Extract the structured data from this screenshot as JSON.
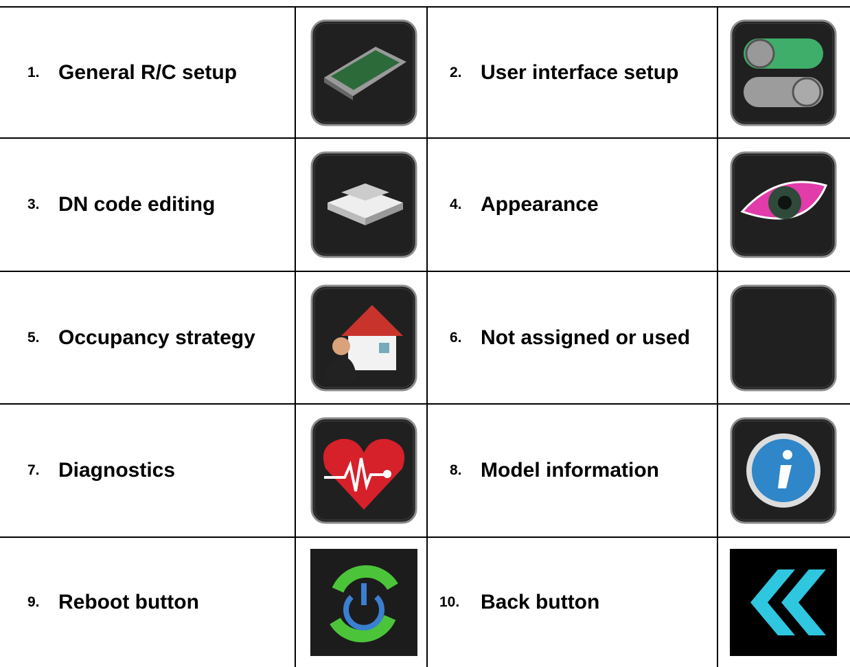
{
  "table": {
    "rows": [
      [
        {
          "number": "1.",
          "label": "General R/C setup"
        },
        {
          "number": "2.",
          "label": "User interface setup"
        }
      ],
      [
        {
          "number": "3.",
          "label": "DN code editing"
        },
        {
          "number": "4.",
          "label": "Appearance"
        }
      ],
      [
        {
          "number": "5.",
          "label": "Occupancy strategy"
        },
        {
          "number": "6.",
          "label": "Not assigned or used"
        }
      ],
      [
        {
          "number": "7.",
          "label": "Diagnostics"
        },
        {
          "number": "8.",
          "label": "Model information"
        }
      ],
      [
        {
          "number": "9.",
          "label": "Reboot button"
        },
        {
          "number": "10.",
          "label": "Back button"
        }
      ]
    ]
  }
}
